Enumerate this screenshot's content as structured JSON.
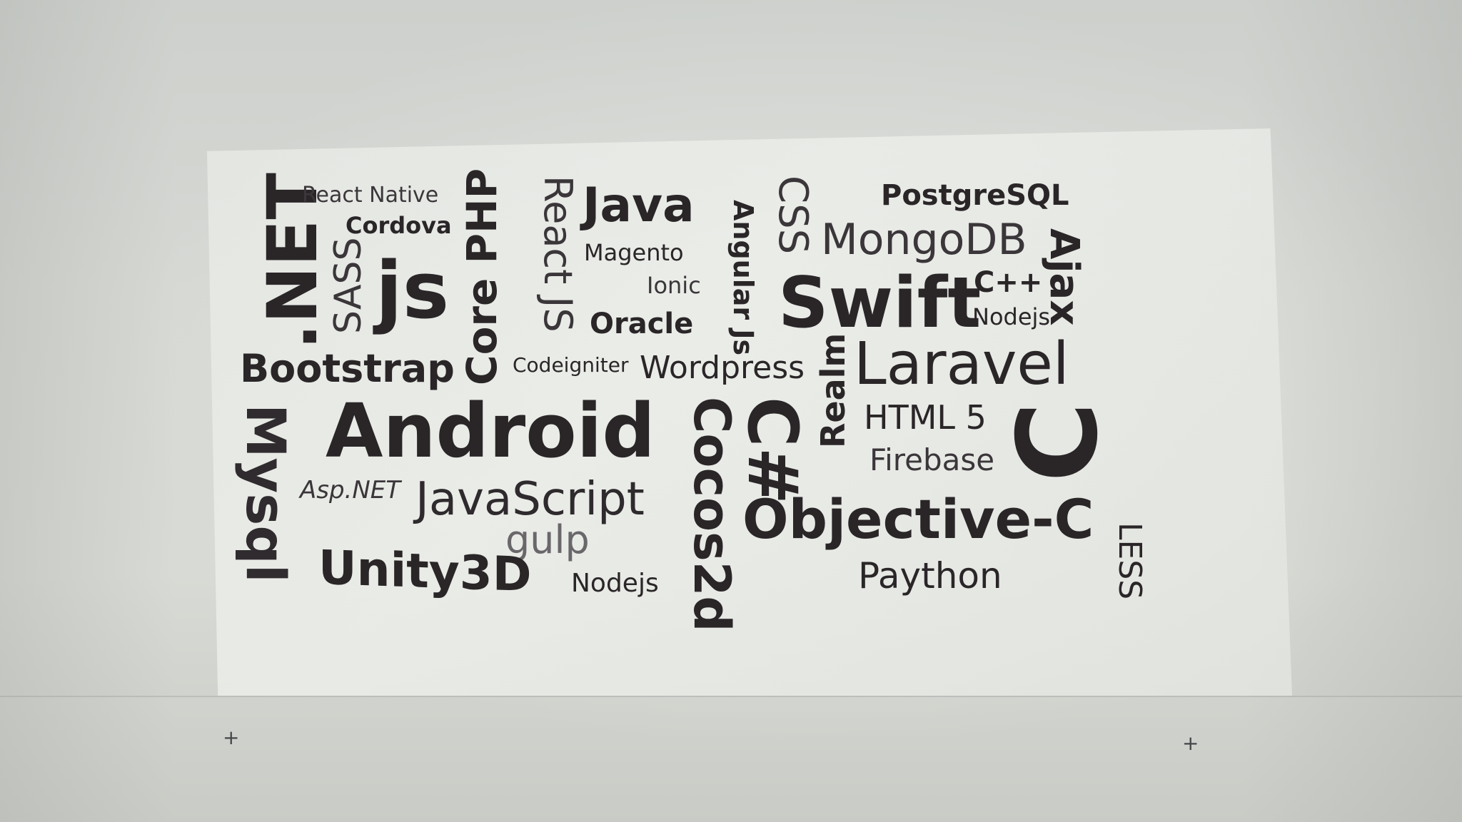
{
  "words": {
    "react_native": "React Native",
    "cordova": "Cordova",
    "dotnet": ".NET",
    "sass": "SASS",
    "js": "js",
    "core_php": "Core PHP",
    "react_js": "React JS",
    "java": "Java",
    "magento": "Magento",
    "ionic": "Ionic",
    "oracle": "Oracle",
    "angular_js": "Angular Js",
    "css": "CSS",
    "postgresql": "PostgreSQL",
    "mongodb": "MongoDB",
    "ajax": "Ajax",
    "swift": "Swift",
    "cpp": "C++",
    "nodejs_top": "Nodejs",
    "bootstrap": "Bootstrap",
    "codeigniter": "Codeigniter",
    "wordpress": "Wordpress",
    "realm": "Realm",
    "laravel": "Laravel",
    "mysql": "Mysql",
    "android": "Android",
    "cocos2d": "Cocos2d",
    "csharp": "C#",
    "html5": "HTML 5",
    "c": "C",
    "firebase": "Firebase",
    "aspnet": "Asp.NET",
    "javascript": "JavaScript",
    "gulp": "gulp",
    "objective_c": "Objective-C",
    "less": "LESS",
    "unity3d": "Unity3D",
    "nodejs_bottom": "Nodejs",
    "paython": "Paython"
  },
  "marks": {
    "left_cross": "+",
    "right_cross": "+"
  }
}
